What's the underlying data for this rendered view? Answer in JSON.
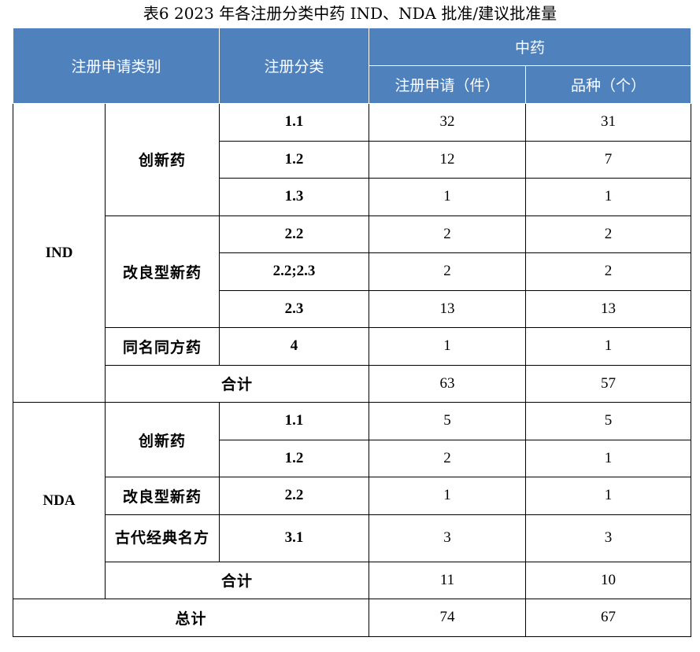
{
  "caption": "表6   2023 年各注册分类中药 IND、NDA 批准/建议批准量",
  "header": {
    "col1": "注册申请类别",
    "col2": "注册分类",
    "group": "中药",
    "col3": "注册申请（件）",
    "col4": "品种（个）"
  },
  "ind": {
    "label": "IND",
    "cx": "创新药",
    "gl": "改良型新药",
    "tm": "同名同方药",
    "rows": [
      {
        "code": "1.1",
        "apps": "32",
        "varieties": "31"
      },
      {
        "code": "1.2",
        "apps": "12",
        "varieties": "7"
      },
      {
        "code": "1.3",
        "apps": "1",
        "varieties": "1"
      },
      {
        "code": "2.2",
        "apps": "2",
        "varieties": "2"
      },
      {
        "code": "2.2;2.3",
        "apps": "2",
        "varieties": "2"
      },
      {
        "code": "2.3",
        "apps": "13",
        "varieties": "13"
      },
      {
        "code": "4",
        "apps": "1",
        "varieties": "1"
      }
    ],
    "subtotal_label": "合计",
    "subtotal_apps": "63",
    "subtotal_varieties": "57"
  },
  "nda": {
    "label": "NDA",
    "cx": "创新药",
    "gl": "改良型新药",
    "gd": "古代经典名方",
    "rows": [
      {
        "code": "1.1",
        "apps": "5",
        "varieties": "5"
      },
      {
        "code": "1.2",
        "apps": "2",
        "varieties": "1"
      },
      {
        "code": "2.2",
        "apps": "1",
        "varieties": "1"
      },
      {
        "code": "3.1",
        "apps": "3",
        "varieties": "3"
      }
    ],
    "subtotal_label": "合计",
    "subtotal_apps": "11",
    "subtotal_varieties": "10"
  },
  "total": {
    "label": "总计",
    "apps": "74",
    "varieties": "67"
  }
}
